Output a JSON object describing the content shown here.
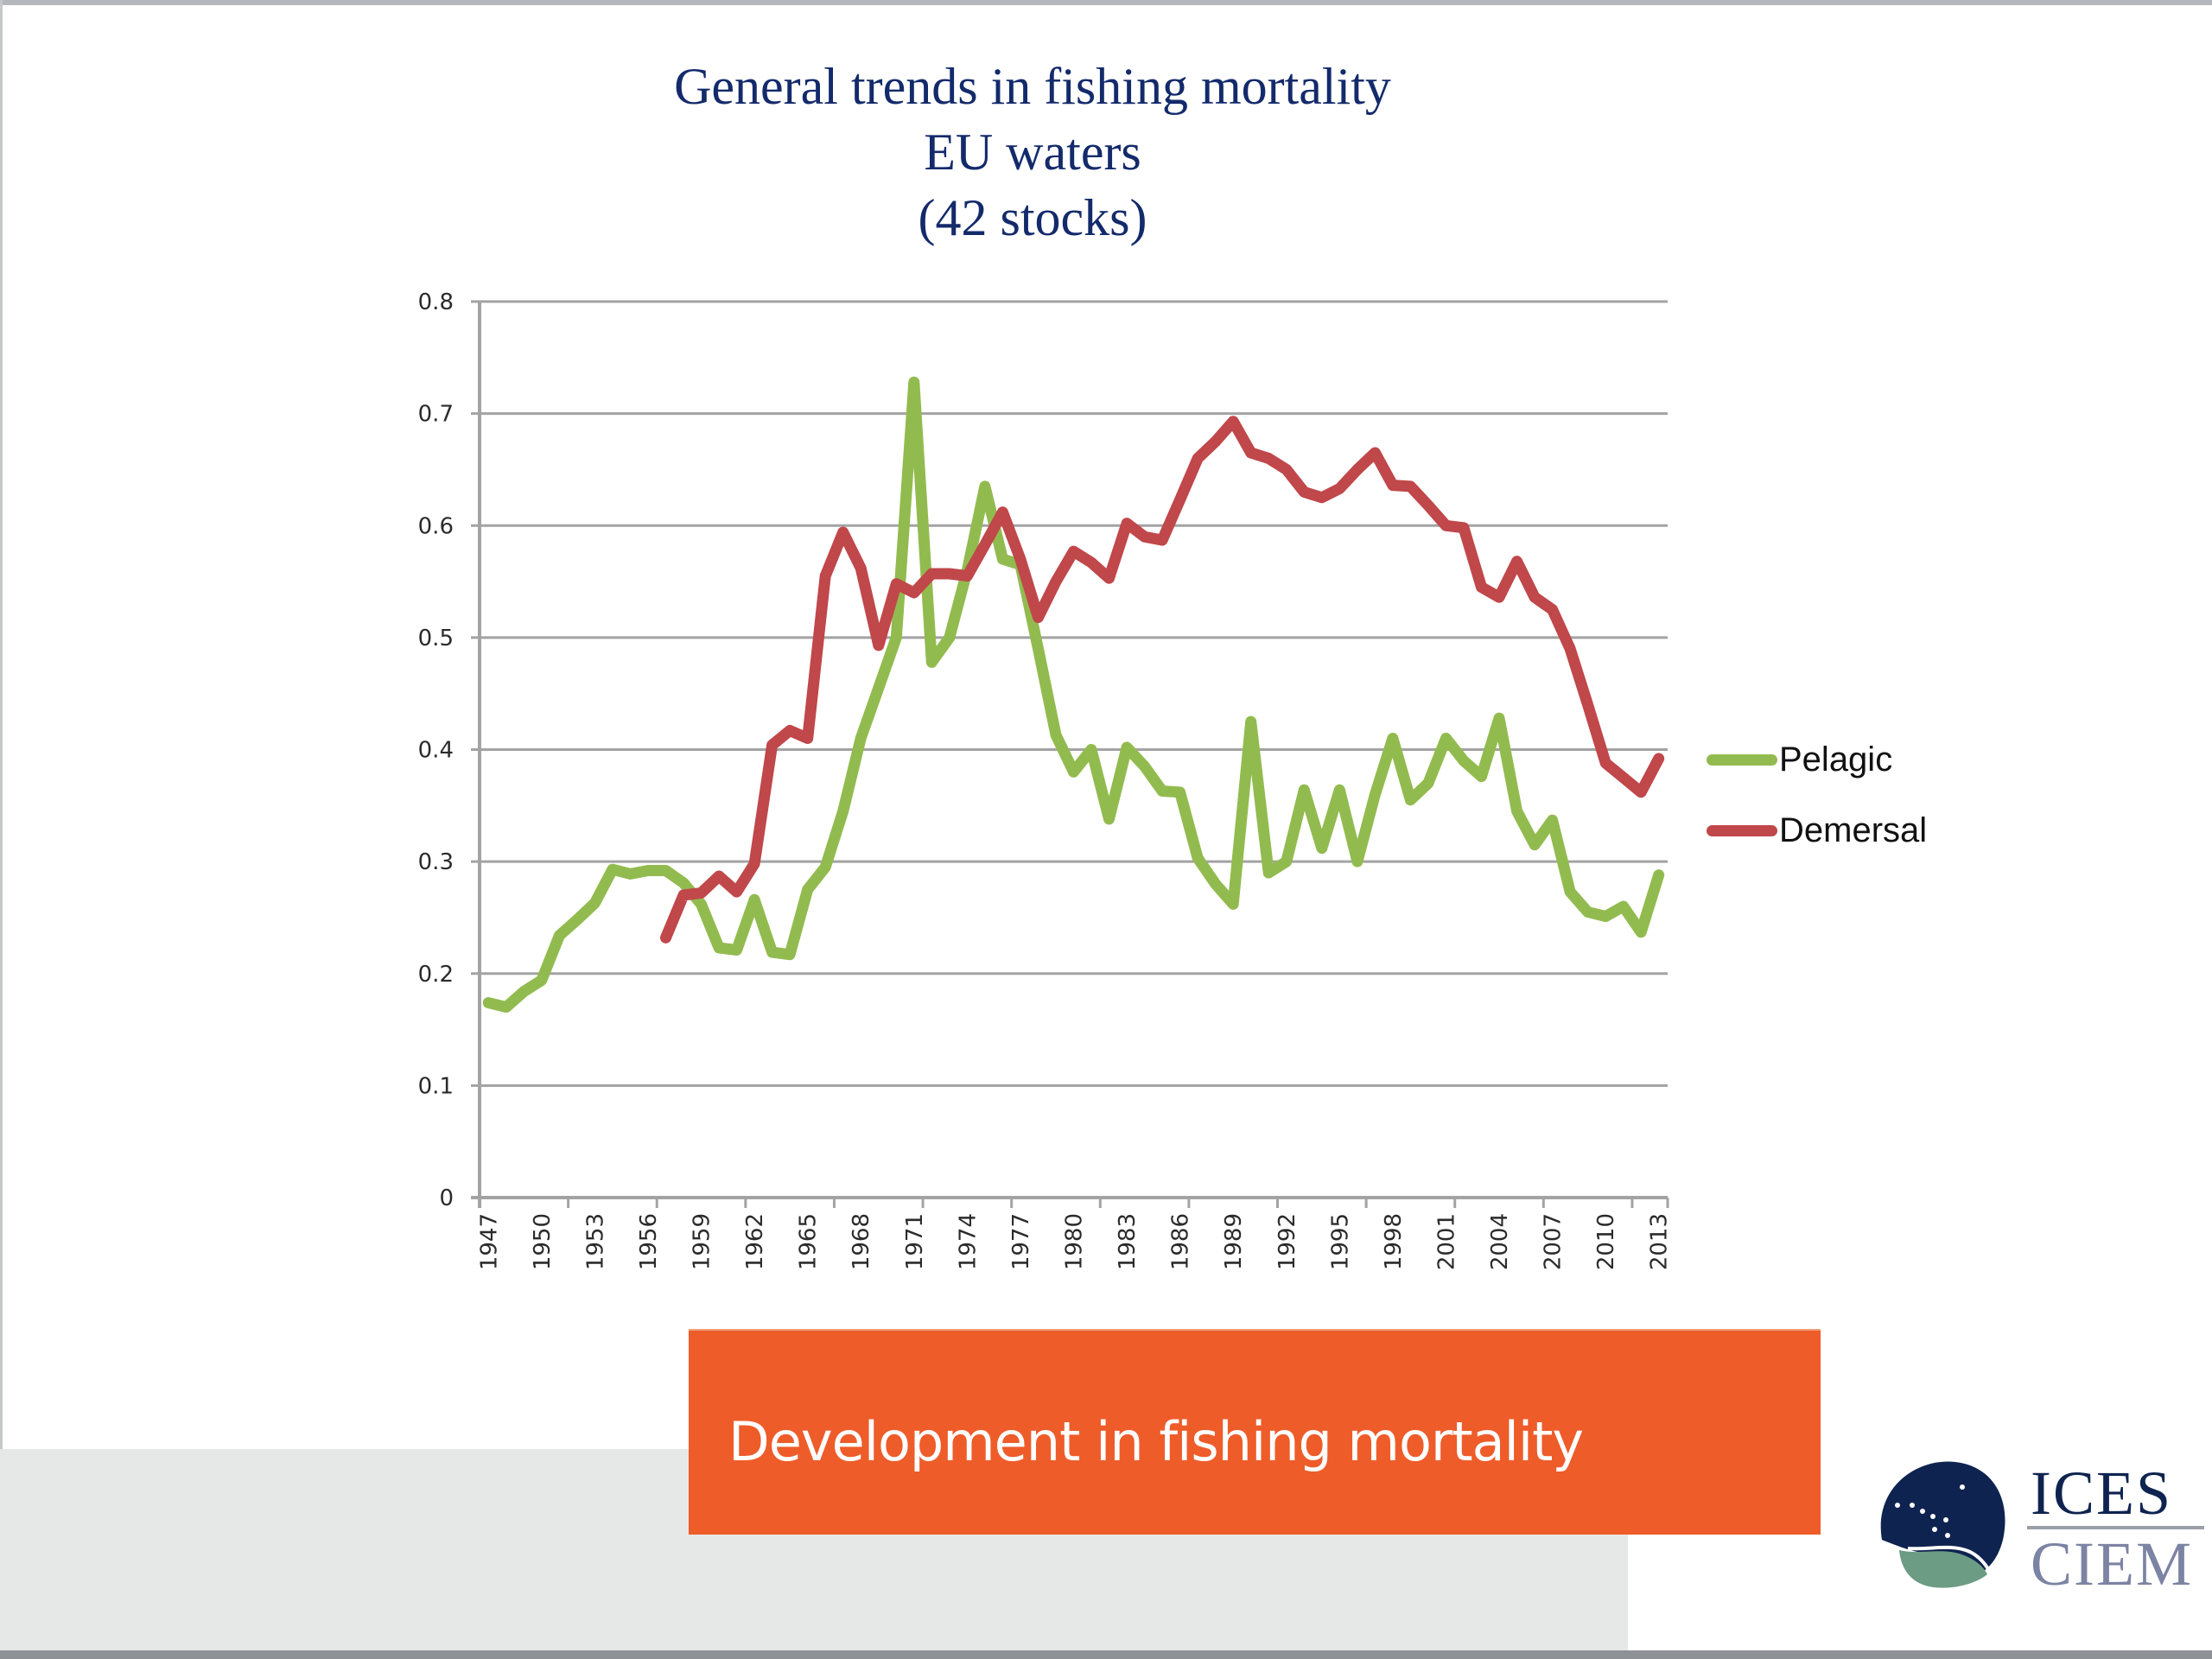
{
  "slide": {
    "banner_text": "Development in fishing mortality",
    "logo": {
      "top_word": "ICES",
      "bottom_word": "CIEM",
      "icon": "ices-globe-logo-icon"
    },
    "colors": {
      "banner": "#ee5c2a",
      "title": "#132a6b",
      "gray_band": "#e6e8e7"
    }
  },
  "chart_data": {
    "type": "line",
    "title": "General trends in fishing mortality",
    "subtitle_lines": [
      "EU waters",
      "(42 stocks)"
    ],
    "xlabel": "",
    "ylabel": "",
    "ylim": [
      0,
      0.8
    ],
    "yticks": [
      "0",
      "0.1",
      "0.2",
      "0.3",
      "0.4",
      "0.5",
      "0.6",
      "0.7",
      "0.8"
    ],
    "grid": true,
    "legend_position": "right",
    "x": [
      1947,
      1948,
      1949,
      1950,
      1951,
      1952,
      1953,
      1954,
      1955,
      1956,
      1957,
      1958,
      1959,
      1960,
      1961,
      1962,
      1963,
      1964,
      1965,
      1966,
      1967,
      1968,
      1969,
      1970,
      1971,
      1972,
      1973,
      1974,
      1975,
      1976,
      1977,
      1978,
      1979,
      1980,
      1981,
      1982,
      1983,
      1984,
      1985,
      1986,
      1987,
      1988,
      1989,
      1990,
      1991,
      1992,
      1993,
      1994,
      1995,
      1996,
      1997,
      1998,
      1999,
      2000,
      2001,
      2002,
      2003,
      2004,
      2005,
      2006,
      2007,
      2008,
      2009,
      2010,
      2011,
      2012,
      2013
    ],
    "xtick_labels": [
      "1947",
      "1950",
      "1953",
      "1956",
      "1959",
      "1962",
      "1965",
      "1968",
      "1971",
      "1974",
      "1977",
      "1980",
      "1983",
      "1986",
      "1989",
      "1992",
      "1995",
      "1998",
      "2001",
      "2004",
      "2007",
      "2010",
      "2013"
    ],
    "series": [
      {
        "name": "Pelagic",
        "color": "#92bb4f",
        "values": [
          0.174,
          0.17,
          0.184,
          0.194,
          0.234,
          0.248,
          0.263,
          0.293,
          0.289,
          0.292,
          0.292,
          0.281,
          0.262,
          0.223,
          0.221,
          0.266,
          0.219,
          0.217,
          0.275,
          0.295,
          0.345,
          0.41,
          0.455,
          0.5,
          0.728,
          0.478,
          0.5,
          0.56,
          0.635,
          0.57,
          0.565,
          0.49,
          0.413,
          0.38,
          0.4,
          0.338,
          0.402,
          0.385,
          0.363,
          0.362,
          0.303,
          0.28,
          0.262,
          0.425,
          0.29,
          0.3,
          0.364,
          0.312,
          0.364,
          0.3,
          0.36,
          0.41,
          0.355,
          0.37,
          0.41,
          0.39,
          0.376,
          0.428,
          0.345,
          0.315,
          0.337,
          0.273,
          0.255,
          0.251,
          0.26,
          0.237,
          0.288
        ]
      },
      {
        "name": "Demersal",
        "color": "#c0474a",
        "values": [
          null,
          null,
          null,
          null,
          null,
          null,
          null,
          null,
          null,
          null,
          0.232,
          0.27,
          0.272,
          0.287,
          0.273,
          0.298,
          0.404,
          0.417,
          0.41,
          0.555,
          0.594,
          0.562,
          0.493,
          0.548,
          0.54,
          0.557,
          0.557,
          0.555,
          0.583,
          0.612,
          0.57,
          0.518,
          0.55,
          0.577,
          0.567,
          0.553,
          0.602,
          0.59,
          0.587,
          0.623,
          0.66,
          0.675,
          0.693,
          0.665,
          0.66,
          0.65,
          0.63,
          0.625,
          0.633,
          0.65,
          0.665,
          0.636,
          0.635,
          0.618,
          0.6,
          0.598,
          0.545,
          0.536,
          0.568,
          0.536,
          0.525,
          0.49,
          0.44,
          0.388,
          0.375,
          0.362,
          0.392
        ]
      }
    ]
  }
}
